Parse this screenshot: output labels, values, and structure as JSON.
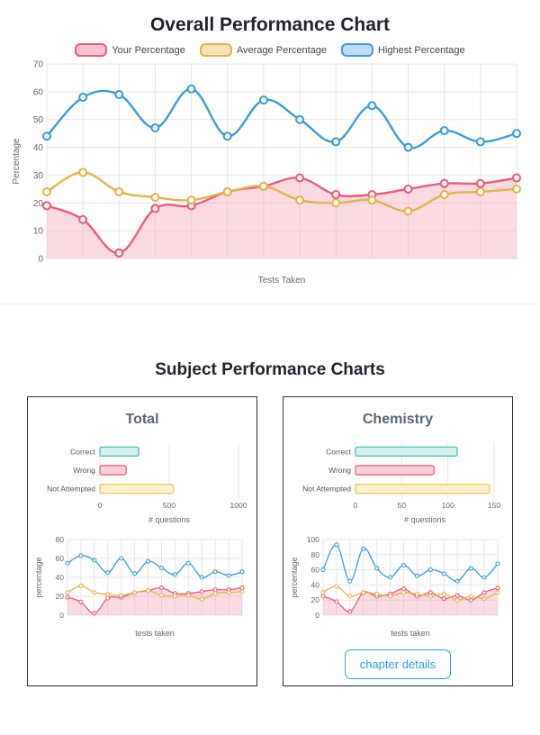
{
  "page": {
    "overall_title": "Overall Performance Chart",
    "subject_title": "Subject Performance Charts"
  },
  "legend": [
    {
      "label": "Your Percentage",
      "fill": "#f9c3d0",
      "stroke": "#ec5a7f"
    },
    {
      "label": "Average Percentage",
      "fill": "#f7e4b4",
      "stroke": "#e0b54d"
    },
    {
      "label": "Highest Percentage",
      "fill": "#bfdcf2",
      "stroke": "#3d9bd8"
    }
  ],
  "cards": [
    {
      "title": "Total"
    },
    {
      "title": "Chemistry",
      "button_label": "chapter details"
    }
  ],
  "chart_data": [
    {
      "id": "overall",
      "type": "line",
      "title": "Overall Performance Chart",
      "xlabel": "Tests Taken",
      "ylabel": "Percentage",
      "ylim": [
        0,
        70
      ],
      "yticks": [
        0,
        10,
        20,
        30,
        40,
        50,
        60,
        70
      ],
      "grid": true,
      "legend_position": "top",
      "series": [
        {
          "name": "Your Percentage",
          "color": "#ec5a7f",
          "fill": "rgba(246,148,172,0.35)",
          "values": [
            19,
            14,
            2,
            18,
            19,
            24,
            26,
            29,
            23,
            23,
            25,
            27,
            27,
            29
          ]
        },
        {
          "name": "Average Percentage",
          "color": "#e0b54d",
          "values": [
            24,
            31,
            24,
            22,
            21,
            24,
            26,
            21,
            20,
            21,
            17,
            23,
            24,
            25
          ]
        },
        {
          "name": "Highest Percentage",
          "color": "#3d9bd8",
          "values": [
            44,
            58,
            59,
            47,
            61,
            44,
            57,
            50,
            42,
            55,
            40,
            46,
            42,
            45
          ]
        }
      ]
    },
    {
      "id": "total-bar",
      "type": "bar",
      "orientation": "horizontal",
      "categories": [
        "Correct",
        "Wrong",
        "Not Attempted"
      ],
      "values": [
        280,
        190,
        530
      ],
      "colors": [
        {
          "fill": "#d2f0ec",
          "stroke": "#5bc4bc"
        },
        {
          "fill": "#f9d0da",
          "stroke": "#ef6a8d"
        },
        {
          "fill": "#fdf1cf",
          "stroke": "#edc664"
        }
      ],
      "xlabel": "# questions",
      "xlim": [
        0,
        1000
      ],
      "xticks": [
        0,
        500,
        1000
      ]
    },
    {
      "id": "total-line",
      "type": "line",
      "xlabel": "tests taken",
      "ylabel": "percentage",
      "ylim": [
        0,
        80
      ],
      "yticks": [
        0,
        20,
        40,
        60,
        80
      ],
      "series": [
        {
          "name": "Your Percentage",
          "color": "#ec5a7f",
          "fill": "rgba(246,148,172,0.35)",
          "values": [
            19,
            14,
            2,
            18,
            19,
            24,
            26,
            29,
            23,
            23,
            25,
            27,
            27,
            29
          ]
        },
        {
          "name": "Average Percentage",
          "color": "#e0b54d",
          "values": [
            24,
            31,
            24,
            22,
            21,
            24,
            26,
            21,
            20,
            21,
            17,
            23,
            24,
            25
          ]
        },
        {
          "name": "Highest Percentage",
          "color": "#3d9bd8",
          "values": [
            55,
            63,
            58,
            45,
            60,
            44,
            57,
            50,
            43,
            55,
            40,
            46,
            42,
            46
          ]
        }
      ]
    },
    {
      "id": "chem-bar",
      "type": "bar",
      "orientation": "horizontal",
      "categories": [
        "Correct",
        "Wrong",
        "Not Attempted"
      ],
      "values": [
        110,
        85,
        145
      ],
      "colors": [
        {
          "fill": "#d2f0ec",
          "stroke": "#5bc4bc"
        },
        {
          "fill": "#f9d0da",
          "stroke": "#ef6a8d"
        },
        {
          "fill": "#fdf1cf",
          "stroke": "#edc664"
        }
      ],
      "xlabel": "# questions",
      "xlim": [
        0,
        150
      ],
      "xticks": [
        0,
        50,
        100,
        150
      ]
    },
    {
      "id": "chem-line",
      "type": "line",
      "xlabel": "tests taken",
      "ylabel": "percentage",
      "ylim": [
        0,
        100
      ],
      "yticks": [
        0,
        20,
        40,
        60,
        80,
        100
      ],
      "series": [
        {
          "name": "Your Percentage",
          "color": "#ec5a7f",
          "fill": "rgba(246,148,172,0.35)",
          "values": [
            25,
            18,
            5,
            30,
            25,
            28,
            35,
            25,
            30,
            22,
            26,
            20,
            30,
            36
          ]
        },
        {
          "name": "Average Percentage",
          "color": "#e0b54d",
          "values": [
            30,
            38,
            25,
            30,
            28,
            25,
            30,
            28,
            25,
            28,
            20,
            25,
            22,
            30
          ]
        },
        {
          "name": "Highest Percentage",
          "color": "#3d9bd8",
          "values": [
            60,
            93,
            45,
            88,
            62,
            50,
            66,
            52,
            60,
            55,
            45,
            62,
            50,
            68
          ]
        }
      ]
    }
  ]
}
